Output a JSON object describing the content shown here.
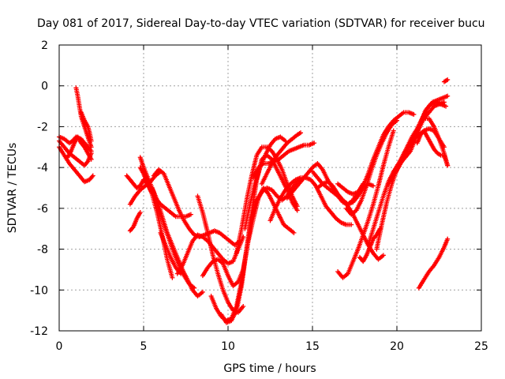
{
  "chart_data": {
    "type": "scatter",
    "title": "Day 081 of 2017, Sidereal Day-to-day VTEC variation (SDTVAR) for receiver bucu",
    "xlabel": "GPS time / hours",
    "ylabel": "SDTVAR / TECUs",
    "xlim": [
      0,
      25
    ],
    "ylim": [
      -12,
      2
    ],
    "xticks": [
      0,
      5,
      10,
      15,
      20,
      25
    ],
    "yticks": [
      -12,
      -10,
      -8,
      -6,
      -4,
      -2,
      0,
      2
    ],
    "grid": true,
    "marker": "+",
    "color": "#ff0000",
    "series": [
      {
        "x": [
          0.0,
          0.3,
          0.6,
          0.9,
          1.2,
          1.5,
          1.8,
          2.0
        ],
        "y": [
          -3.0,
          -3.4,
          -3.8,
          -4.1,
          -4.4,
          -4.7,
          -4.6,
          -4.4
        ]
      },
      {
        "x": [
          0.0,
          0.3,
          0.6,
          0.9,
          1.2,
          1.5,
          1.7,
          1.9
        ],
        "y": [
          -2.7,
          -3.0,
          -3.3,
          -3.5,
          -3.7,
          -3.9,
          -3.7,
          -3.3
        ]
      },
      {
        "x": [
          0.0,
          0.3,
          0.6,
          0.8,
          1.0,
          1.3,
          1.6,
          1.9
        ],
        "y": [
          -2.5,
          -2.6,
          -2.8,
          -2.7,
          -2.5,
          -2.6,
          -2.9,
          -3.2
        ]
      },
      {
        "x": [
          0.5,
          0.7,
          0.9,
          1.1,
          1.3,
          1.5,
          1.7,
          1.9
        ],
        "y": [
          -3.5,
          -3.2,
          -2.8,
          -2.5,
          -2.8,
          -3.0,
          -3.3,
          -3.6
        ]
      },
      {
        "x": [
          1.0,
          1.1,
          1.2,
          1.3,
          1.5,
          1.7,
          1.9
        ],
        "y": [
          -0.1,
          -0.5,
          -1.0,
          -1.5,
          -2.0,
          -2.5,
          -3.0
        ]
      },
      {
        "x": [
          1.3,
          1.5,
          1.7,
          1.8,
          1.9
        ],
        "y": [
          -1.3,
          -1.7,
          -2.0,
          -2.3,
          -2.7
        ]
      },
      {
        "x": [
          4.0,
          4.2,
          4.4,
          4.6,
          4.8,
          5.0,
          5.2,
          5.4
        ],
        "y": [
          -4.4,
          -4.6,
          -4.8,
          -5.0,
          -4.9,
          -4.6,
          -4.8,
          -5.0
        ]
      },
      {
        "x": [
          4.2,
          4.5,
          4.8,
          5.1,
          5.4,
          5.7,
          6.0
        ],
        "y": [
          -5.8,
          -5.4,
          -5.1,
          -4.9,
          -4.7,
          -4.4,
          -4.2
        ]
      },
      {
        "x": [
          4.2,
          4.4,
          4.6,
          4.8
        ],
        "y": [
          -7.1,
          -6.9,
          -6.5,
          -6.2
        ]
      },
      {
        "x": [
          4.8,
          5.0,
          5.2,
          5.4,
          5.7,
          6.0,
          6.3,
          6.6,
          6.9,
          7.2,
          7.5,
          7.8
        ],
        "y": [
          -4.0,
          -4.3,
          -4.7,
          -5.1,
          -5.5,
          -5.8,
          -6.0,
          -6.2,
          -6.4,
          -6.4,
          -6.4,
          -6.3
        ]
      },
      {
        "x": [
          4.8,
          5.0,
          5.3,
          5.6,
          5.9,
          6.2,
          6.5,
          6.8,
          7.1,
          7.4,
          7.7,
          8.0
        ],
        "y": [
          -3.5,
          -4.0,
          -4.6,
          -5.2,
          -6.0,
          -6.8,
          -7.5,
          -8.2,
          -8.8,
          -9.3,
          -9.7,
          -9.9
        ]
      },
      {
        "x": [
          5.0,
          5.2,
          5.5,
          5.8,
          6.1,
          6.4,
          6.7
        ],
        "y": [
          -4.3,
          -4.7,
          -5.3,
          -6.2,
          -7.3,
          -8.5,
          -9.4
        ]
      },
      {
        "x": [
          5.5,
          5.8,
          6.1,
          6.4,
          6.7,
          7.0,
          7.3,
          7.6,
          7.9,
          8.2,
          8.5
        ],
        "y": [
          -5.0,
          -5.6,
          -6.4,
          -7.2,
          -7.8,
          -8.4,
          -9.0,
          -9.5,
          -10.0,
          -10.3,
          -10.1
        ]
      },
      {
        "x": [
          5.6,
          5.9,
          6.2,
          6.5,
          6.8,
          7.1,
          7.4,
          7.7,
          8.0,
          8.3,
          8.6,
          8.9,
          9.2,
          9.5,
          9.8,
          10.1,
          10.4,
          10.7
        ],
        "y": [
          -4.4,
          -4.1,
          -4.3,
          -4.9,
          -5.5,
          -6.1,
          -6.6,
          -7.0,
          -7.3,
          -7.4,
          -7.3,
          -7.2,
          -7.1,
          -7.2,
          -7.4,
          -7.6,
          -7.8,
          -7.6
        ]
      },
      {
        "x": [
          6.0,
          6.3,
          6.6,
          6.9,
          7.2
        ],
        "y": [
          -7.2,
          -7.8,
          -8.4,
          -8.9,
          -9.2
        ]
      },
      {
        "x": [
          7.0,
          7.3,
          7.6,
          7.9,
          8.2,
          8.5,
          8.8,
          9.1,
          9.4,
          9.7,
          10.0,
          10.3,
          10.6,
          10.9
        ],
        "y": [
          -9.2,
          -8.8,
          -8.2,
          -7.6,
          -7.3,
          -7.4,
          -7.6,
          -7.9,
          -8.2,
          -8.5,
          -8.7,
          -8.6,
          -8.0,
          -7.4
        ]
      },
      {
        "x": [
          8.5,
          8.8,
          9.1,
          9.4,
          9.7,
          10.0,
          10.3,
          10.6,
          10.9,
          11.2,
          11.5,
          11.8,
          12.1,
          12.4,
          12.7,
          13.0,
          13.3,
          13.6,
          13.9
        ],
        "y": [
          -9.3,
          -8.9,
          -8.6,
          -8.5,
          -8.7,
          -9.3,
          -9.8,
          -9.6,
          -9.0,
          -7.6,
          -6.5,
          -5.5,
          -5.0,
          -5.3,
          -5.8,
          -6.3,
          -6.8,
          -7.0,
          -7.2
        ]
      },
      {
        "x": [
          8.2,
          8.5,
          8.8,
          9.1,
          9.4,
          9.7,
          10.0,
          10.3,
          10.6,
          10.9
        ],
        "y": [
          -5.4,
          -6.2,
          -7.2,
          -8.3,
          -9.2,
          -10.0,
          -10.6,
          -11.0,
          -11.1,
          -10.8
        ]
      },
      {
        "x": [
          9.0,
          9.3,
          9.6,
          9.9,
          10.2,
          10.5,
          10.8,
          11.1,
          11.4,
          11.7,
          12.0,
          12.3,
          12.6,
          12.9,
          13.2,
          13.5,
          13.8,
          14.1,
          14.4
        ],
        "y": [
          -10.3,
          -10.9,
          -11.3,
          -11.5,
          -11.4,
          -10.8,
          -9.6,
          -8.0,
          -6.5,
          -5.6,
          -5.2,
          -5.0,
          -5.1,
          -5.4,
          -5.6,
          -5.4,
          -5.0,
          -4.7,
          -4.6
        ]
      },
      {
        "x": [
          9.6,
          9.9,
          10.2,
          10.5,
          10.8,
          11.1,
          11.4,
          11.7,
          12.0,
          12.3,
          12.6,
          12.9,
          13.2,
          13.5,
          13.8,
          14.1
        ],
        "y": [
          -11.2,
          -11.6,
          -11.5,
          -11.0,
          -9.8,
          -8.0,
          -6.2,
          -4.6,
          -3.6,
          -3.4,
          -3.6,
          -4.1,
          -4.6,
          -5.1,
          -5.7,
          -6.1
        ]
      },
      {
        "x": [
          10.5,
          10.8,
          11.1,
          11.4,
          11.7,
          12.0,
          12.3,
          12.6,
          12.9,
          13.2,
          13.5,
          13.8,
          14.1
        ],
        "y": [
          -8.2,
          -7.0,
          -5.6,
          -4.4,
          -3.4,
          -3.0,
          -3.0,
          -3.2,
          -3.6,
          -4.1,
          -4.8,
          -5.4,
          -5.9
        ]
      },
      {
        "x": [
          11.0,
          11.3,
          11.6,
          11.9,
          12.2,
          12.5,
          12.8,
          13.1,
          13.4
        ],
        "y": [
          -7.0,
          -5.8,
          -4.8,
          -4.0,
          -3.4,
          -2.9,
          -2.6,
          -2.5,
          -2.7
        ]
      },
      {
        "x": [
          11.5,
          11.8,
          12.1,
          12.4,
          12.7,
          13.0,
          13.3,
          13.6,
          13.9,
          14.2,
          14.5,
          14.8,
          15.1
        ],
        "y": [
          -4.5,
          -4.0,
          -3.8,
          -3.8,
          -3.7,
          -3.6,
          -3.4,
          -3.2,
          -3.1,
          -3.0,
          -2.9,
          -2.9,
          -2.8
        ]
      },
      {
        "x": [
          12.0,
          12.3,
          12.6,
          12.9,
          13.2,
          13.5,
          13.8,
          14.1,
          14.3
        ],
        "y": [
          -4.8,
          -4.3,
          -3.8,
          -3.4,
          -3.1,
          -2.8,
          -2.6,
          -2.4,
          -2.3
        ]
      },
      {
        "x": [
          12.5,
          12.8,
          13.1,
          13.4,
          13.7,
          14.0,
          14.3,
          14.6,
          14.9,
          15.2,
          15.5,
          15.8,
          16.1,
          16.4,
          16.7,
          17.0,
          17.3
        ],
        "y": [
          -6.6,
          -6.0,
          -5.5,
          -5.1,
          -4.8,
          -4.6,
          -4.5,
          -4.5,
          -4.6,
          -4.9,
          -5.4,
          -5.9,
          -6.2,
          -6.5,
          -6.7,
          -6.8,
          -6.8
        ]
      },
      {
        "x": [
          13.5,
          13.8,
          14.1,
          14.4,
          14.7,
          15.0,
          15.3,
          15.6,
          15.9,
          16.2,
          16.5,
          16.8,
          17.1,
          17.4,
          17.7,
          18.0
        ],
        "y": [
          -5.5,
          -5.2,
          -4.9,
          -4.6,
          -4.3,
          -4.0,
          -3.8,
          -4.1,
          -4.6,
          -5.0,
          -5.4,
          -5.7,
          -5.8,
          -5.6,
          -5.2,
          -4.8
        ]
      },
      {
        "x": [
          15.0,
          15.3,
          15.6,
          15.9,
          16.2,
          16.5,
          16.8,
          17.1,
          17.4,
          17.7,
          18.0,
          18.3,
          18.6,
          18.9,
          19.2
        ],
        "y": [
          -4.2,
          -4.5,
          -4.8,
          -5.0,
          -5.2,
          -5.4,
          -5.6,
          -5.9,
          -6.3,
          -6.8,
          -7.3,
          -7.8,
          -8.2,
          -8.5,
          -8.3
        ]
      },
      {
        "x": [
          15.3,
          15.6,
          15.9,
          16.2,
          16.5,
          16.8,
          17.1,
          17.4,
          17.7,
          18.0,
          18.3,
          18.6
        ],
        "y": [
          -5.0,
          -4.8,
          -4.7,
          -4.9,
          -5.3,
          -5.6,
          -5.8,
          -5.7,
          -5.4,
          -5.0,
          -4.8,
          -4.9
        ]
      },
      {
        "x": [
          16.5,
          16.8,
          17.1,
          17.4,
          17.7,
          18.0,
          18.3,
          18.6,
          18.9,
          19.2,
          19.5,
          19.8,
          20.1,
          20.4,
          20.7,
          21.0
        ],
        "y": [
          -4.8,
          -5.0,
          -5.2,
          -5.3,
          -5.2,
          -4.9,
          -4.3,
          -3.6,
          -3.0,
          -2.4,
          -2.0,
          -1.7,
          -1.5,
          -1.3,
          -1.3,
          -1.4
        ]
      },
      {
        "x": [
          16.5,
          16.8,
          17.1,
          17.4,
          17.7,
          18.0,
          18.3,
          18.6,
          18.9,
          19.2,
          19.5,
          19.8
        ],
        "y": [
          -9.1,
          -9.4,
          -9.2,
          -8.6,
          -8.0,
          -7.3,
          -6.6,
          -5.8,
          -4.9,
          -3.9,
          -3.0,
          -2.2
        ]
      },
      {
        "x": [
          17.0,
          17.3,
          17.6,
          17.9,
          18.2,
          18.5,
          18.8,
          19.1,
          19.4,
          19.7,
          20.0
        ],
        "y": [
          -6.0,
          -6.3,
          -6.1,
          -5.6,
          -4.9,
          -4.1,
          -3.4,
          -2.8,
          -2.3,
          -1.9,
          -1.7
        ]
      },
      {
        "x": [
          17.8,
          18.0,
          18.2,
          18.4,
          18.6,
          18.8,
          19.0
        ],
        "y": [
          -8.4,
          -8.6,
          -8.3,
          -7.9,
          -7.5,
          -7.3,
          -7.0
        ]
      },
      {
        "x": [
          18.3,
          18.6,
          18.9,
          19.2,
          19.5,
          19.8,
          20.1,
          20.4,
          20.7,
          21.0,
          21.3,
          21.6,
          21.9,
          22.2,
          22.5,
          22.8
        ],
        "y": [
          -7.8,
          -7.0,
          -6.2,
          -5.4,
          -4.7,
          -4.2,
          -3.8,
          -3.4,
          -3.0,
          -2.6,
          -2.4,
          -2.2,
          -2.1,
          -2.2,
          -2.6,
          -3.0
        ]
      },
      {
        "x": [
          18.8,
          19.1,
          19.4,
          19.7,
          20.0,
          20.3,
          20.6,
          20.9,
          21.2,
          21.5,
          21.8,
          22.1,
          22.4,
          22.7,
          23.0
        ],
        "y": [
          -8.0,
          -6.8,
          -5.7,
          -4.8,
          -4.1,
          -3.5,
          -3.0,
          -2.5,
          -2.1,
          -1.6,
          -1.1,
          -0.8,
          -0.7,
          -0.6,
          -0.5
        ]
      },
      {
        "x": [
          19.5,
          19.8,
          20.1,
          20.4,
          20.7,
          21.0,
          21.3,
          21.6,
          21.9,
          22.2,
          22.5,
          22.8
        ],
        "y": [
          -4.8,
          -4.4,
          -4.0,
          -3.5,
          -3.0,
          -2.5,
          -2.1,
          -1.6,
          -1.3,
          -1.0,
          -0.9,
          -0.8
        ]
      },
      {
        "x": [
          20.2,
          20.5,
          20.8,
          21.1,
          21.4,
          21.7,
          22.0,
          22.3,
          22.6,
          22.9
        ],
        "y": [
          -3.8,
          -3.5,
          -3.2,
          -2.6,
          -1.8,
          -1.2,
          -0.9,
          -0.8,
          -0.9,
          -1.0
        ]
      },
      {
        "x": [
          21.2,
          21.4,
          21.6,
          21.8,
          22.0,
          22.2,
          22.4,
          22.6,
          22.8,
          23.0
        ],
        "y": [
          -2.8,
          -2.4,
          -2.2,
          -2.5,
          -2.8,
          -3.1,
          -3.3,
          -3.4,
          -3.4,
          -3.9
        ]
      },
      {
        "x": [
          21.0,
          21.3,
          21.6,
          21.9,
          22.2,
          22.5,
          22.8,
          23.0
        ],
        "y": [
          -2.5,
          -2.0,
          -1.6,
          -1.6,
          -2.0,
          -2.6,
          -3.3,
          -3.9
        ]
      },
      {
        "x": [
          21.3,
          21.6,
          21.9,
          22.2,
          22.5,
          22.8,
          23.0
        ],
        "y": [
          -9.9,
          -9.5,
          -9.1,
          -8.8,
          -8.4,
          -7.9,
          -7.5
        ]
      },
      {
        "x": [
          22.8,
          23.0
        ],
        "y": [
          0.2,
          0.3
        ]
      }
    ]
  }
}
